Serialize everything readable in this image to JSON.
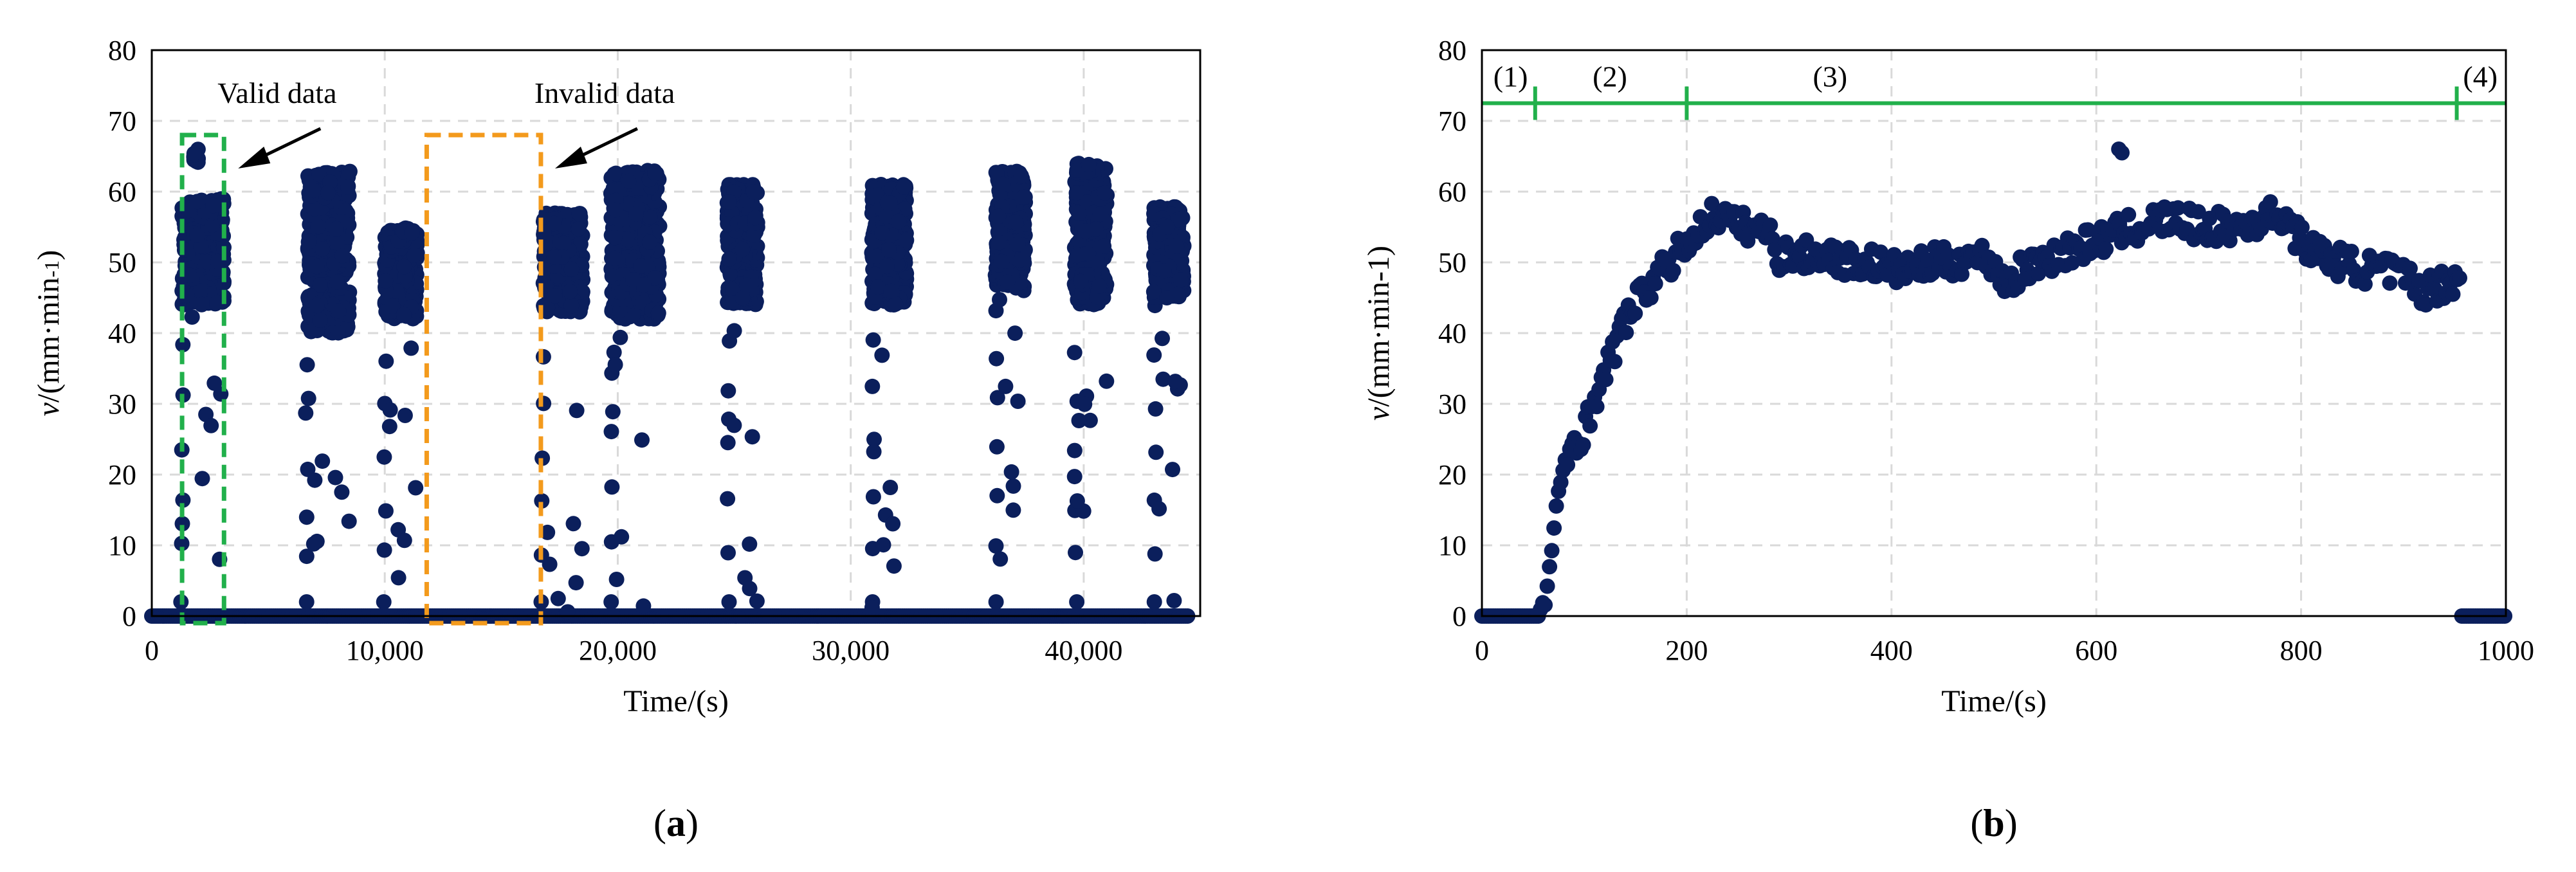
{
  "panels": [
    {
      "label_prefix": "(",
      "label_letter": "a",
      "label_suffix": ")"
    },
    {
      "label_prefix": "(",
      "label_letter": "b",
      "label_suffix": ")"
    }
  ],
  "chart_data": [
    {
      "type": "scatter",
      "title": "",
      "xlabel": "Time/(s)",
      "ylabel_parts": {
        "italic": "v",
        "main": "/(mm·min",
        "sup": "-1",
        "end": ")"
      },
      "xlim": [
        0,
        45000
      ],
      "ylim": [
        0,
        80
      ],
      "x_ticks": [
        0,
        10000,
        20000,
        30000,
        40000
      ],
      "x_tick_labels": [
        "0",
        "10,000",
        "20,000",
        "30,000",
        "40,000"
      ],
      "y_ticks": [
        0,
        10,
        20,
        30,
        40,
        50,
        60,
        70,
        80
      ],
      "grid": true,
      "marker_color": "#0b1f5c",
      "annotations": [
        {
          "text": "Valid data",
          "box_color": "#21b04b",
          "x_range": [
            1300,
            3100
          ],
          "y_range": [
            -1,
            68
          ]
        },
        {
          "text": "Invalid data",
          "box_color": "#f39a1c",
          "x_range": [
            11800,
            16700
          ],
          "y_range": [
            -1,
            68
          ]
        }
      ],
      "zero_baseline_range": [
        0,
        44500
      ],
      "bursts": [
        {
          "x_start": 1300,
          "x_end": 3100,
          "y_min": 44,
          "y_max": 59,
          "spike_x": 1800,
          "spike_y": 66,
          "trail_x": 1250
        },
        {
          "x_start": 6700,
          "x_end": 8500,
          "y_min": 40,
          "y_max": 63,
          "trail_x": 6600
        },
        {
          "x_start": 10000,
          "x_end": 11400,
          "y_min": 42,
          "y_max": 55,
          "trail_x": 9950
        },
        {
          "x_start": 16800,
          "x_end": 18500,
          "y_min": 43,
          "y_max": 57,
          "trail_x": 16700
        },
        {
          "x_start": 19700,
          "x_end": 21800,
          "y_min": 42,
          "y_max": 63,
          "trail_x": 19700
        },
        {
          "x_start": 24700,
          "x_end": 26000,
          "y_min": 44,
          "y_max": 61,
          "trail_x": 24700
        },
        {
          "x_start": 30900,
          "x_end": 32400,
          "y_min": 44,
          "y_max": 61,
          "trail_x": 30900
        },
        {
          "x_start": 36200,
          "x_end": 37500,
          "y_min": 46,
          "y_max": 63,
          "trail_x": 36200
        },
        {
          "x_start": 39600,
          "x_end": 41000,
          "y_min": 44,
          "y_max": 64,
          "trail_x": 39600
        },
        {
          "x_start": 43000,
          "x_end": 44300,
          "y_min": 45,
          "y_max": 58,
          "trail_x": 43000
        }
      ]
    },
    {
      "type": "scatter",
      "title": "",
      "xlabel": "Time/(s)",
      "ylabel_parts": {
        "italic": "v",
        "main": "/(mm·min-1)",
        "sup": "",
        "end": ""
      },
      "xlim": [
        0,
        1000
      ],
      "ylim": [
        0,
        80
      ],
      "x_ticks": [
        0,
        200,
        400,
        600,
        800,
        1000
      ],
      "x_tick_labels": [
        "0",
        "200",
        "400",
        "600",
        "800",
        "1000"
      ],
      "y_ticks": [
        0,
        10,
        20,
        30,
        40,
        50,
        60,
        70,
        80
      ],
      "grid": true,
      "marker_color": "#0b1f5c",
      "stage_line": {
        "y": 72.5,
        "color": "#21b04b",
        "x_range": [
          0,
          1000
        ],
        "tick_x": [
          52,
          200,
          952
        ]
      },
      "stage_labels": [
        {
          "text": "(1)",
          "x": 28
        },
        {
          "text": "(2)",
          "x": 125
        },
        {
          "text": "(3)",
          "x": 340
        },
        {
          "text": "(4)",
          "x": 975
        }
      ],
      "profile": [
        [
          0,
          0
        ],
        [
          55,
          0
        ],
        [
          62,
          3
        ],
        [
          70,
          11
        ],
        [
          80,
          21
        ],
        [
          90,
          25
        ],
        [
          100,
          26
        ],
        [
          110,
          31
        ],
        [
          120,
          34
        ],
        [
          130,
          38
        ],
        [
          140,
          42
        ],
        [
          150,
          44
        ],
        [
          160,
          46
        ],
        [
          170,
          48
        ],
        [
          180,
          49
        ],
        [
          190,
          51
        ],
        [
          200,
          53
        ],
        [
          210,
          54
        ],
        [
          220,
          56
        ],
        [
          230,
          57
        ],
        [
          240,
          56
        ],
        [
          250,
          55
        ],
        [
          260,
          55
        ],
        [
          270,
          55
        ],
        [
          280,
          54
        ],
        [
          290,
          51
        ],
        [
          300,
          51
        ],
        [
          320,
          51
        ],
        [
          340,
          51
        ],
        [
          360,
          50
        ],
        [
          380,
          50
        ],
        [
          400,
          49
        ],
        [
          420,
          49
        ],
        [
          440,
          50
        ],
        [
          460,
          50
        ],
        [
          480,
          51
        ],
        [
          500,
          50
        ],
        [
          510,
          47
        ],
        [
          520,
          48
        ],
        [
          540,
          50
        ],
        [
          560,
          51
        ],
        [
          580,
          52
        ],
        [
          600,
          53
        ],
        [
          620,
          54
        ],
        [
          640,
          55
        ],
        [
          660,
          56
        ],
        [
          680,
          56
        ],
        [
          700,
          55
        ],
        [
          720,
          55
        ],
        [
          740,
          55
        ],
        [
          760,
          56
        ],
        [
          780,
          57
        ],
        [
          800,
          53
        ],
        [
          820,
          51
        ],
        [
          840,
          50
        ],
        [
          860,
          49
        ],
        [
          880,
          49
        ],
        [
          900,
          48
        ],
        [
          920,
          46
        ],
        [
          940,
          47
        ],
        [
          955,
          48
        ],
        [
          958,
          0
        ],
        [
          1000,
          0
        ]
      ],
      "outliers": [
        [
          622,
          66
        ],
        [
          625,
          65.5
        ]
      ],
      "noise_amplitude": 2.2
    }
  ]
}
